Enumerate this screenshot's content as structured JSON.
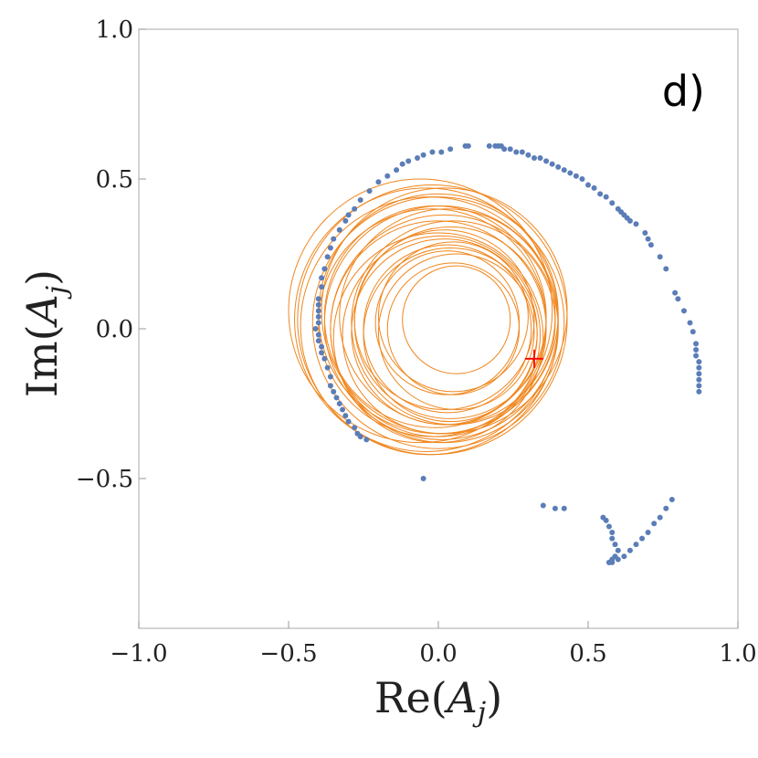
{
  "chart_data": {
    "type": "scatter",
    "panel_label": "d)",
    "xlabel_main": "Re(",
    "xlabel_var": "A",
    "xlabel_sub": "j",
    "xlabel_close": ")",
    "ylabel_main": "Im(",
    "ylabel_var": "A",
    "ylabel_sub": "j",
    "ylabel_close": ")",
    "xlim": [
      -1.0,
      1.0
    ],
    "ylim": [
      -1.0,
      1.0
    ],
    "xticks": [
      {
        "value": -1.0,
        "label": "−1.0"
      },
      {
        "value": -0.5,
        "label": "−0.5"
      },
      {
        "value": 0.0,
        "label": "0.0"
      },
      {
        "value": 0.5,
        "label": "0.5"
      },
      {
        "value": 1.0,
        "label": "1.0"
      }
    ],
    "yticks": [
      {
        "value": 1.0,
        "label": "1.0"
      },
      {
        "value": 0.5,
        "label": "0.5"
      },
      {
        "value": 0.0,
        "label": "0.0"
      },
      {
        "value": -0.5,
        "label": "−0.5"
      }
    ],
    "grid": false,
    "colors": {
      "points": "#5b7db8",
      "circles": "#f0871f",
      "marker": "#ff0000",
      "frame": "#b8b8b8"
    },
    "marker": {
      "x": 0.32,
      "y": -0.1
    },
    "circles": [
      {
        "cx": 0.0,
        "cy": 0.02,
        "r": 0.42
      },
      {
        "cx": 0.02,
        "cy": 0.0,
        "r": 0.38
      },
      {
        "cx": 0.05,
        "cy": 0.02,
        "r": 0.34
      },
      {
        "cx": 0.03,
        "cy": 0.0,
        "r": 0.28
      },
      {
        "cx": 0.05,
        "cy": 0.0,
        "r": 0.22
      },
      {
        "cx": -0.02,
        "cy": 0.03,
        "r": 0.45
      },
      {
        "cx": 0.0,
        "cy": 0.05,
        "r": 0.4
      },
      {
        "cx": 0.03,
        "cy": 0.04,
        "r": 0.36
      },
      {
        "cx": 0.01,
        "cy": -0.02,
        "r": 0.33
      },
      {
        "cx": 0.02,
        "cy": 0.03,
        "r": 0.3
      },
      {
        "cx": 0.06,
        "cy": -0.01,
        "r": 0.26
      },
      {
        "cx": -0.03,
        "cy": 0.01,
        "r": 0.43
      },
      {
        "cx": 0.02,
        "cy": 0.06,
        "r": 0.41
      },
      {
        "cx": 0.04,
        "cy": 0.02,
        "r": 0.32
      },
      {
        "cx": 0.0,
        "cy": -0.03,
        "r": 0.35
      },
      {
        "cx": -0.01,
        "cy": 0.04,
        "r": 0.37
      },
      {
        "cx": 0.01,
        "cy": 0.02,
        "r": 0.39
      },
      {
        "cx": 0.04,
        "cy": -0.02,
        "r": 0.29
      },
      {
        "cx": -0.02,
        "cy": 0.02,
        "r": 0.38
      },
      {
        "cx": 0.05,
        "cy": 0.04,
        "r": 0.25
      },
      {
        "cx": 0.03,
        "cy": 0.02,
        "r": 0.24
      },
      {
        "cx": 0.06,
        "cy": 0.03,
        "r": 0.18
      },
      {
        "cx": 0.0,
        "cy": 0.0,
        "r": 0.36
      },
      {
        "cx": -0.04,
        "cy": 0.03,
        "r": 0.44
      },
      {
        "cx": 0.02,
        "cy": -0.01,
        "r": 0.31
      },
      {
        "cx": -0.06,
        "cy": 0.06,
        "r": 0.44
      }
    ],
    "points_x": [
      -0.4,
      -0.4,
      -0.4,
      -0.4,
      -0.4,
      -0.41,
      -0.4,
      -0.4,
      -0.39,
      -0.39,
      -0.38,
      -0.37,
      -0.36,
      -0.36,
      -0.35,
      -0.34,
      -0.33,
      -0.32,
      -0.31,
      -0.3,
      -0.28,
      -0.27,
      -0.26,
      -0.24,
      -0.39,
      -0.39,
      -0.38,
      -0.37,
      -0.36,
      -0.35,
      -0.33,
      -0.31,
      -0.3,
      -0.28,
      -0.26,
      -0.23,
      -0.2,
      -0.17,
      -0.14,
      -0.12,
      -0.1,
      -0.07,
      -0.05,
      -0.02,
      0.01,
      0.04,
      0.09,
      0.1,
      0.17,
      0.19,
      0.2,
      0.21,
      0.22,
      0.24,
      0.26,
      0.28,
      0.3,
      0.32,
      0.34,
      0.36,
      0.38,
      0.4,
      0.42,
      0.44,
      0.46,
      0.48,
      0.5,
      0.52,
      0.54,
      0.56,
      0.58,
      0.6,
      0.61,
      0.62,
      0.63,
      0.64,
      0.66,
      0.69,
      0.7,
      0.71,
      0.74,
      0.76,
      0.79,
      0.8,
      0.82,
      0.84,
      0.85,
      0.86,
      0.86,
      0.86,
      0.87,
      0.87,
      0.87,
      0.87,
      0.87,
      0.87,
      -0.05,
      0.35,
      0.39,
      0.42,
      0.55,
      0.56,
      0.57,
      0.58,
      0.58,
      0.59,
      0.6,
      0.59,
      0.58,
      0.57,
      0.57,
      0.58,
      0.6,
      0.62,
      0.64,
      0.66,
      0.68,
      0.7,
      0.72,
      0.74,
      0.76,
      0.78
    ],
    "points_y": [
      0.1,
      0.08,
      0.06,
      0.04,
      0.02,
      0.0,
      -0.02,
      -0.04,
      -0.06,
      -0.08,
      -0.1,
      -0.13,
      -0.16,
      -0.19,
      -0.21,
      -0.23,
      -0.25,
      -0.27,
      -0.29,
      -0.31,
      -0.33,
      -0.35,
      -0.36,
      -0.37,
      0.14,
      0.17,
      0.2,
      0.24,
      0.27,
      0.3,
      0.33,
      0.36,
      0.38,
      0.4,
      0.43,
      0.46,
      0.49,
      0.51,
      0.53,
      0.55,
      0.56,
      0.57,
      0.58,
      0.59,
      0.59,
      0.6,
      0.61,
      0.61,
      0.61,
      0.61,
      0.61,
      0.61,
      0.6,
      0.6,
      0.59,
      0.59,
      0.58,
      0.57,
      0.57,
      0.56,
      0.55,
      0.54,
      0.53,
      0.52,
      0.51,
      0.5,
      0.48,
      0.47,
      0.45,
      0.44,
      0.42,
      0.4,
      0.39,
      0.38,
      0.37,
      0.36,
      0.35,
      0.32,
      0.3,
      0.28,
      0.24,
      0.2,
      0.12,
      0.1,
      0.06,
      0.02,
      -0.01,
      -0.05,
      -0.07,
      -0.09,
      -0.11,
      -0.13,
      -0.15,
      -0.17,
      -0.19,
      -0.21,
      -0.5,
      -0.59,
      -0.6,
      -0.6,
      -0.63,
      -0.64,
      -0.66,
      -0.68,
      -0.7,
      -0.72,
      -0.74,
      -0.76,
      -0.78,
      -0.78,
      -0.78,
      -0.77,
      -0.77,
      -0.76,
      -0.74,
      -0.72,
      -0.7,
      -0.68,
      -0.65,
      -0.63,
      -0.6,
      -0.57
    ]
  }
}
